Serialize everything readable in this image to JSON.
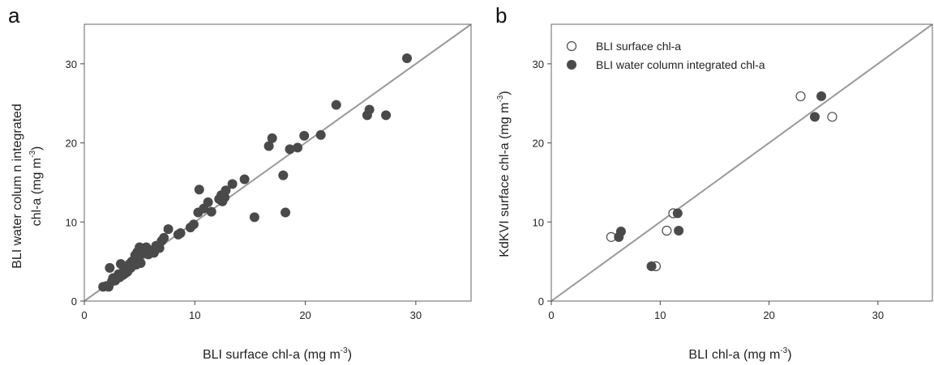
{
  "chart_data": [
    {
      "type": "scatter",
      "panel_label": "a",
      "xlabel": "BLI surface chl-a",
      "xlabel_unit": "(mg m",
      "xlabel_exp": "-3",
      "xlabel_close": ")",
      "ylabel_line1": "BLI water colum n integrated",
      "ylabel_line2": "chl-a",
      "ylabel_unit": "(mg m",
      "ylabel_exp": "-3",
      "ylabel_close": ")",
      "xlim": [
        0,
        35
      ],
      "ylim": [
        0,
        35
      ],
      "xticks": [
        "0",
        "10",
        "20",
        "30"
      ],
      "yticks": [
        "0",
        "10",
        "20",
        "30"
      ],
      "grid": false,
      "reference_line": "1:1",
      "colors": {
        "points": "#4a4a4a",
        "line": "#999999",
        "frame": "#666666"
      },
      "series": [
        {
          "marker": "filled-circle",
          "points": [
            [
              1.7,
              1.8
            ],
            [
              2.0,
              1.9
            ],
            [
              2.2,
              1.8
            ],
            [
              2.3,
              4.2
            ],
            [
              2.5,
              2.5
            ],
            [
              2.6,
              2.9
            ],
            [
              2.8,
              2.6
            ],
            [
              3.0,
              3.0
            ],
            [
              3.1,
              3.4
            ],
            [
              3.2,
              3.0
            ],
            [
              3.3,
              4.7
            ],
            [
              3.5,
              3.3
            ],
            [
              3.6,
              3.9
            ],
            [
              3.7,
              3.5
            ],
            [
              3.8,
              4.1
            ],
            [
              3.9,
              3.7
            ],
            [
              4.0,
              4.5
            ],
            [
              4.1,
              4.7
            ],
            [
              4.2,
              4.2
            ],
            [
              4.3,
              5.0
            ],
            [
              4.4,
              4.5
            ],
            [
              4.5,
              5.2
            ],
            [
              4.6,
              5.8
            ],
            [
              4.7,
              4.6
            ],
            [
              4.8,
              6.2
            ],
            [
              4.9,
              5.5
            ],
            [
              5.0,
              6.8
            ],
            [
              5.1,
              4.8
            ],
            [
              5.2,
              6.0
            ],
            [
              5.3,
              6.5
            ],
            [
              5.5,
              6.2
            ],
            [
              5.6,
              6.8
            ],
            [
              5.8,
              5.9
            ],
            [
              6.0,
              6.4
            ],
            [
              6.3,
              6.1
            ],
            [
              6.5,
              7.0
            ],
            [
              6.8,
              6.7
            ],
            [
              7.0,
              7.6
            ],
            [
              7.2,
              8.0
            ],
            [
              7.6,
              9.1
            ],
            [
              8.5,
              8.4
            ],
            [
              8.7,
              8.6
            ],
            [
              9.6,
              9.3
            ],
            [
              9.9,
              9.7
            ],
            [
              10.3,
              11.2
            ],
            [
              10.4,
              14.1
            ],
            [
              10.8,
              11.7
            ],
            [
              11.2,
              12.5
            ],
            [
              11.5,
              11.3
            ],
            [
              12.2,
              12.9
            ],
            [
              12.4,
              13.4
            ],
            [
              12.5,
              12.6
            ],
            [
              12.7,
              13.1
            ],
            [
              12.8,
              14.0
            ],
            [
              13.4,
              14.8
            ],
            [
              14.5,
              15.4
            ],
            [
              15.4,
              10.6
            ],
            [
              16.7,
              19.6
            ],
            [
              17.0,
              20.6
            ],
            [
              18.0,
              15.9
            ],
            [
              18.2,
              11.2
            ],
            [
              18.6,
              19.2
            ],
            [
              19.3,
              19.4
            ],
            [
              19.9,
              20.9
            ],
            [
              21.4,
              21.0
            ],
            [
              22.8,
              24.8
            ],
            [
              25.6,
              23.5
            ],
            [
              25.8,
              24.2
            ],
            [
              27.3,
              23.5
            ],
            [
              29.2,
              30.7
            ]
          ]
        }
      ]
    },
    {
      "type": "scatter",
      "panel_label": "b",
      "xlabel": "BLI chl-a",
      "xlabel_unit": "(mg m",
      "xlabel_exp": "-3",
      "xlabel_close": ")",
      "ylabel": "KdKVI surface chl-a",
      "ylabel_unit": "(mg m",
      "ylabel_exp": "-3",
      "ylabel_close": ")",
      "xlim": [
        0,
        35
      ],
      "ylim": [
        0,
        35
      ],
      "xticks": [
        "0",
        "10",
        "20",
        "30"
      ],
      "yticks": [
        "0",
        "10",
        "20",
        "30"
      ],
      "grid": false,
      "reference_line": "1:1",
      "legend_position": "top-left",
      "colors": {
        "filled": "#4a4a4a",
        "open_edge": "#4a4a4a",
        "open_fill": "#ffffff",
        "line": "#999999",
        "frame": "#666666"
      },
      "series": [
        {
          "name": "BLI surface chl-a",
          "marker": "open-circle",
          "points": [
            [
              5.5,
              8.1
            ],
            [
              9.6,
              4.4
            ],
            [
              10.6,
              8.9
            ],
            [
              11.2,
              11.1
            ],
            [
              22.9,
              25.9
            ],
            [
              25.8,
              23.3
            ]
          ]
        },
        {
          "name": "BLI water column integrated chl-a",
          "marker": "filled-circle",
          "points": [
            [
              6.2,
              8.1
            ],
            [
              6.4,
              8.8
            ],
            [
              9.2,
              4.4
            ],
            [
              11.6,
              11.1
            ],
            [
              11.7,
              8.9
            ],
            [
              24.2,
              23.3
            ],
            [
              24.8,
              25.9
            ]
          ]
        }
      ]
    }
  ]
}
